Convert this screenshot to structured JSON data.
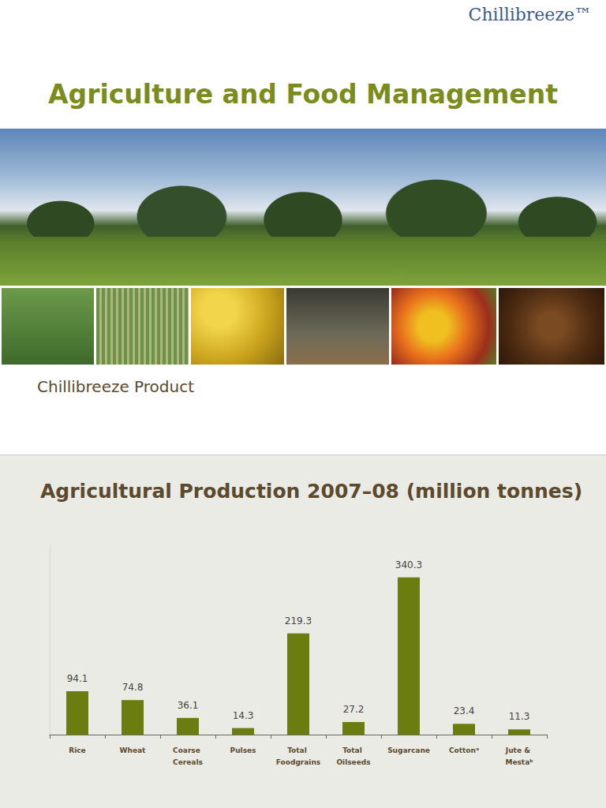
{
  "page": {
    "logo": "Chillibreeze™",
    "title": "Agriculture and Food Management",
    "subtitle": "Chillibreeze Product"
  },
  "chart_data": {
    "type": "bar",
    "title": "Agricultural Production 2007–08 (million tonnes)",
    "categories": [
      "Rice",
      "Wheat",
      "Coarse Cereals",
      "Pulses",
      "Total Foodgrains",
      "Total Oilseeds",
      "Sugarcane",
      "Cottonᵃ",
      "Jute & Mestaᵇ"
    ],
    "values": [
      94.1,
      74.8,
      36.1,
      14.3,
      219.3,
      27.2,
      340.3,
      23.4,
      11.3
    ],
    "color": "#6b7d10",
    "ylim": [
      0,
      410
    ],
    "grid": false,
    "data_labels": true,
    "tick_labels": "x"
  }
}
